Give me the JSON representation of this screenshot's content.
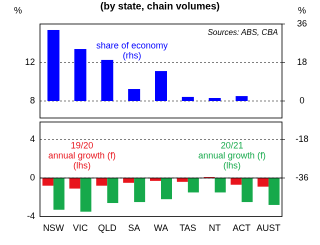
{
  "chart_data": {
    "type": "bar",
    "title": "(by state, chain volumes)",
    "y_label": "%",
    "y2_label": "%",
    "source": "Sources: ABS, CBA",
    "categories": [
      "NSW",
      "VIC",
      "QLD",
      "SA",
      "WA",
      "TAS",
      "NT",
      "ACT",
      "AUST"
    ],
    "series": [
      {
        "name": "share of economy (rhs)",
        "color": "#0000ff",
        "axis": "y2",
        "values": [
          33.2,
          24.3,
          19.2,
          5.6,
          14.0,
          1.9,
          1.4,
          2.3,
          null
        ]
      },
      {
        "name": "19/20 annual growth (f) (lhs)",
        "color": "#e8141c",
        "values": [
          -0.8,
          -1.1,
          -0.8,
          -0.5,
          -0.3,
          -0.4,
          0.1,
          -0.7,
          -0.9
        ]
      },
      {
        "name": "20/21 annual growth (f) (lhs)",
        "color": "#16a94b",
        "values": [
          -3.3,
          -3.5,
          -2.6,
          -2.5,
          -2.2,
          -1.5,
          -1.5,
          -2.5,
          -2.8
        ]
      }
    ],
    "annotations": [
      {
        "lines": [
          "share of economy",
          "(rhs)"
        ],
        "color": "#0000ff"
      },
      {
        "lines": [
          "19/20",
          "annual growth (f)",
          "(lhs)"
        ],
        "color": "#e8141c"
      },
      {
        "lines": [
          "20/21",
          "annual growth (f)",
          "(lhs)"
        ],
        "color": "#16a94b"
      }
    ],
    "ylim": [
      -4,
      16
    ],
    "yticks": [
      -4,
      0,
      4,
      8,
      12
    ],
    "y2lim": [
      -54,
      36
    ],
    "y2ticks": [
      -36,
      -18,
      0,
      18,
      36
    ],
    "grid": true
  }
}
